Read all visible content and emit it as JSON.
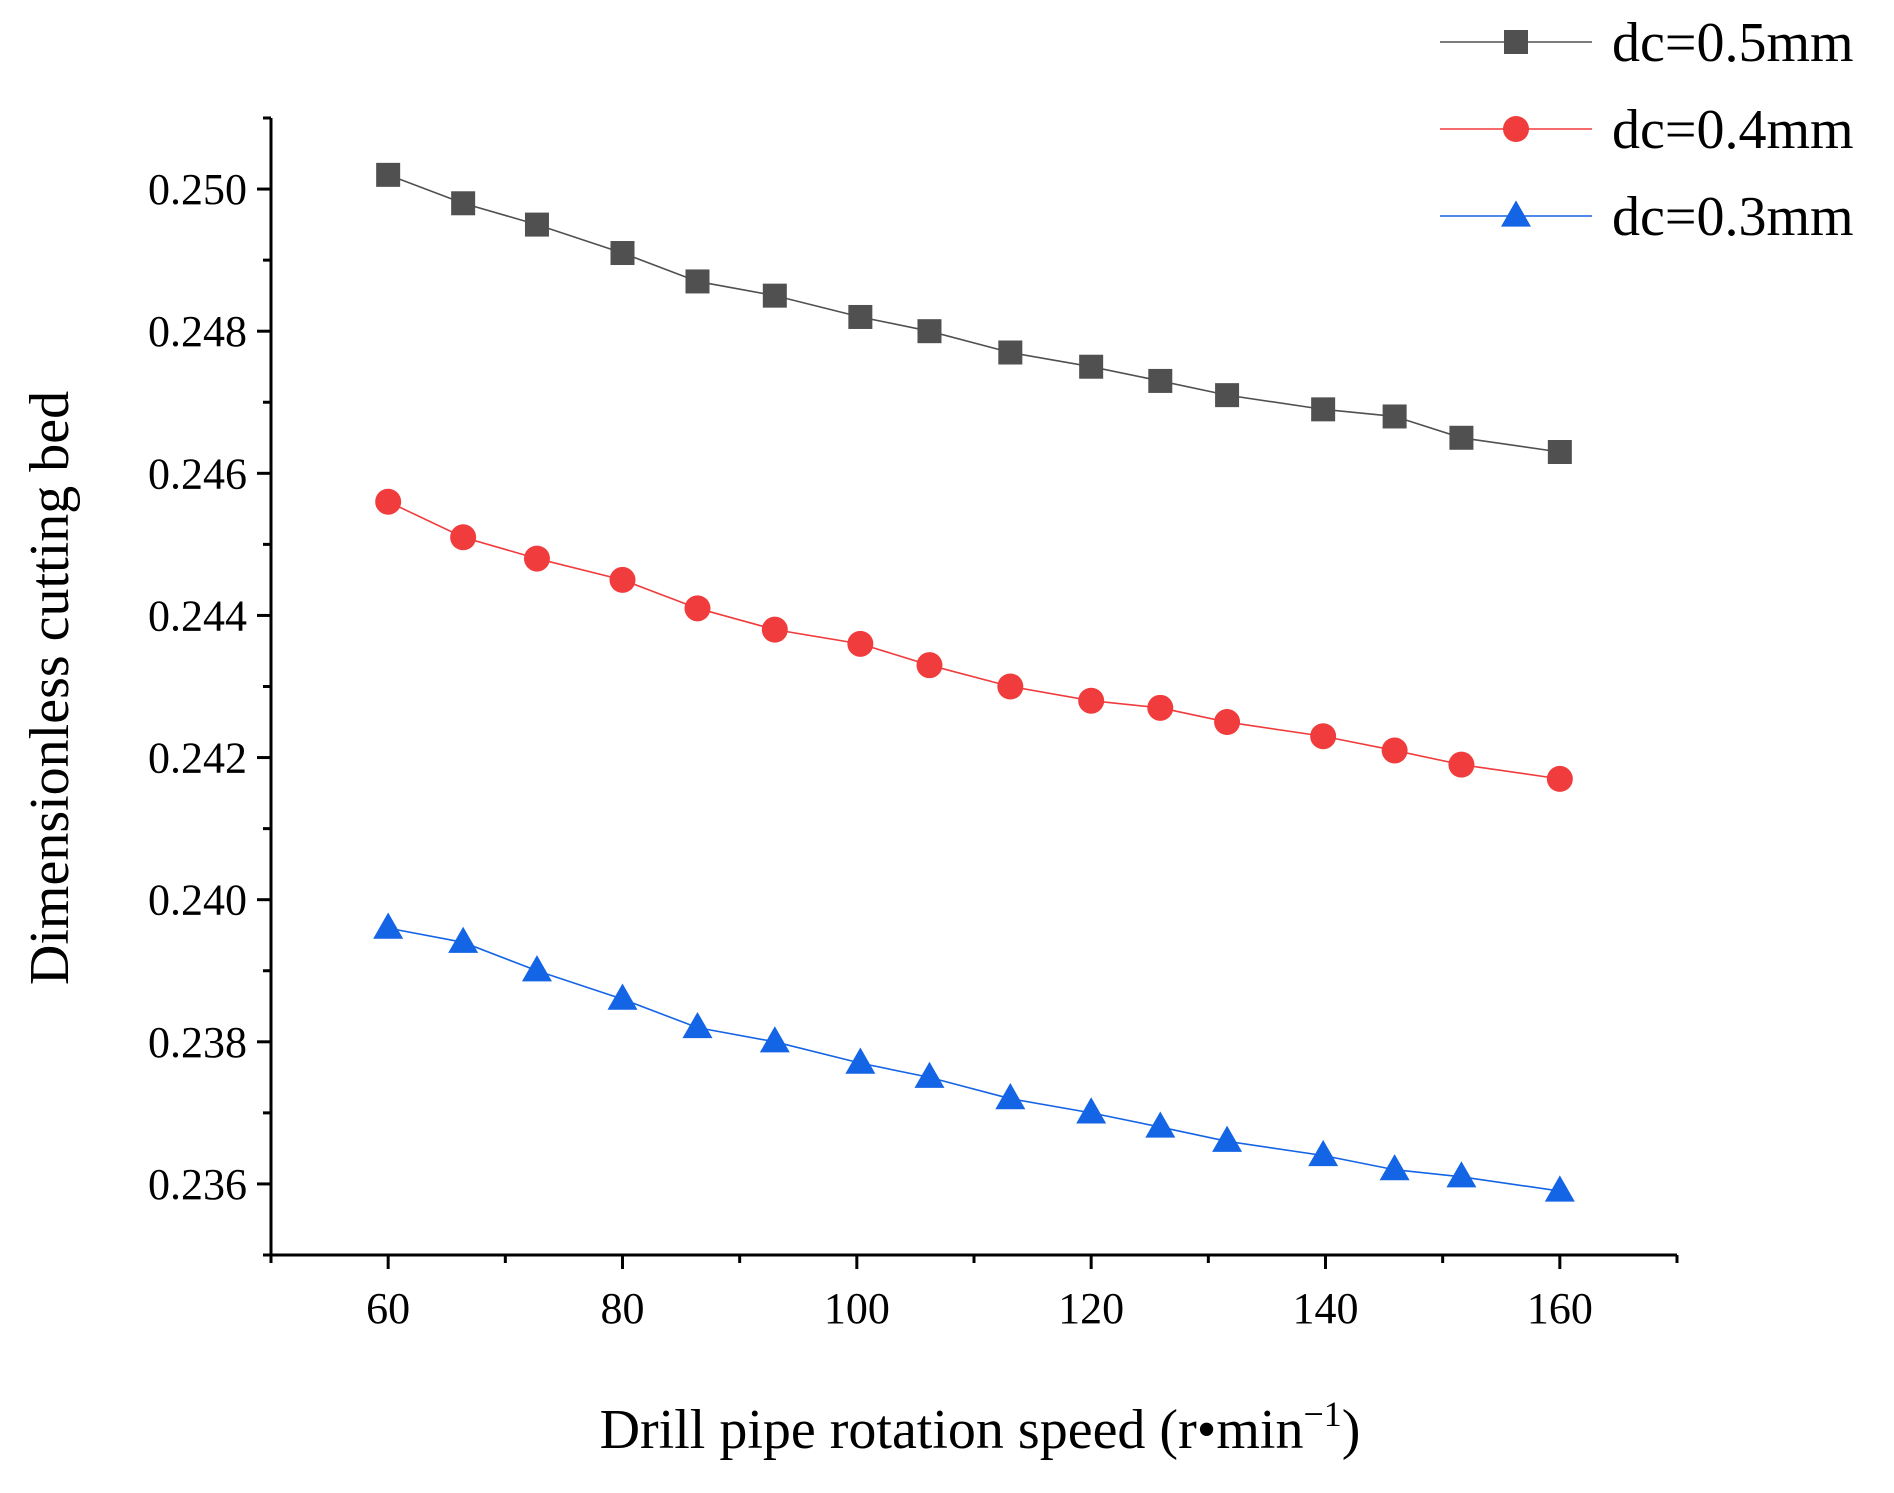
{
  "chart_data": {
    "type": "line",
    "title": "",
    "xlabel": "Drill pipe rotation speed (r•min",
    "xlabel_superscript": "−1",
    "xlabel_suffix": ")",
    "ylabel": "Dimensionless cutting bed",
    "xlim": [
      50,
      170
    ],
    "ylim": [
      0.235,
      0.251
    ],
    "x_ticks": [
      60,
      80,
      100,
      120,
      140,
      160
    ],
    "x_minor_step": 10,
    "y_ticks": [
      0.236,
      0.238,
      0.24,
      0.242,
      0.244,
      0.246,
      0.248,
      0.25
    ],
    "y_tick_labels": [
      "0.236",
      "0.238",
      "0.240",
      "0.242",
      "0.244",
      "0.246",
      "0.248",
      "0.250"
    ],
    "y_minor_step": 0.001,
    "grid": false,
    "legend_position": "top-right",
    "x": [
      60,
      66.4,
      72.7,
      80,
      86.4,
      93,
      100.3,
      106.2,
      113.1,
      120,
      125.9,
      131.6,
      139.8,
      145.9,
      151.6,
      160
    ],
    "series": [
      {
        "name": "dc=0.5mm",
        "color": "#505050",
        "marker": "square",
        "values": [
          0.2502,
          0.2498,
          0.2495,
          0.2491,
          0.2487,
          0.2485,
          0.2482,
          0.248,
          0.2477,
          0.2475,
          0.2473,
          0.2471,
          0.2469,
          0.2468,
          0.2465,
          0.2463
        ]
      },
      {
        "name": "dc=0.4mm",
        "color": "#f03c3c",
        "marker": "circle",
        "values": [
          0.2456,
          0.2451,
          0.2448,
          0.2445,
          0.2441,
          0.2438,
          0.2436,
          0.2433,
          0.243,
          0.2428,
          0.2427,
          0.2425,
          0.2423,
          0.2421,
          0.2419,
          0.2417
        ]
      },
      {
        "name": "dc=0.3mm",
        "color": "#1464e6",
        "marker": "triangle",
        "values": [
          0.2396,
          0.2394,
          0.239,
          0.2386,
          0.2382,
          0.238,
          0.2377,
          0.2375,
          0.2372,
          0.237,
          0.2368,
          0.2366,
          0.2364,
          0.2362,
          0.2361,
          0.2359
        ]
      }
    ]
  }
}
